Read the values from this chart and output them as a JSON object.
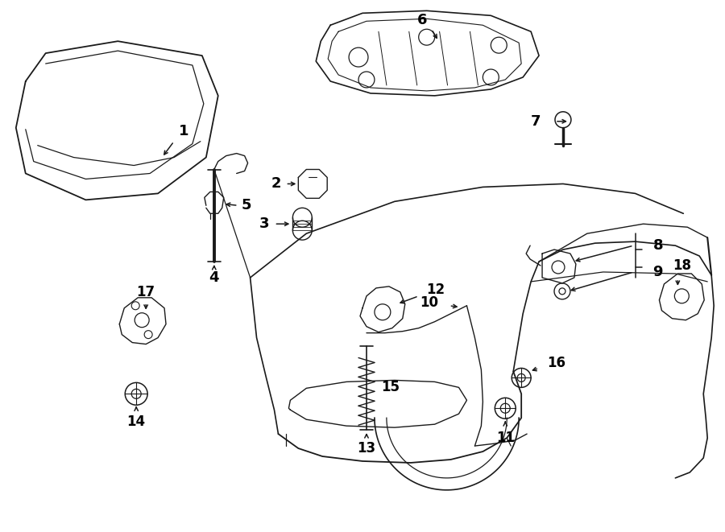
{
  "background_color": "#ffffff",
  "line_color": "#1a1a1a",
  "lw": 1.1,
  "fig_width": 9.0,
  "fig_height": 6.61,
  "dpi": 100
}
